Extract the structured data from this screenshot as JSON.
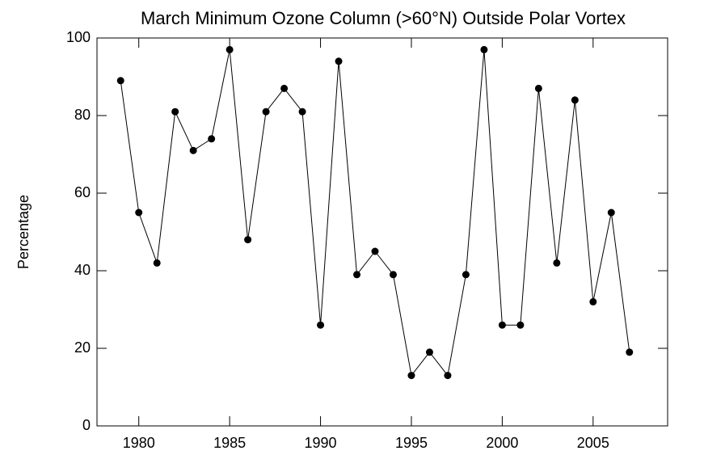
{
  "chart_data": {
    "type": "line",
    "title": "March Minimum Ozone Column (>60°N) Outside Polar Vortex",
    "y_label": "Percentage",
    "x": [
      1979,
      1980,
      1981,
      1982,
      1983,
      1984,
      1985,
      1986,
      1987,
      1988,
      1989,
      1990,
      1991,
      1992,
      1993,
      1994,
      1995,
      1996,
      1997,
      1998,
      1999,
      2000,
      2001,
      2002,
      2003,
      2004,
      2005,
      2006,
      2007
    ],
    "series": [
      {
        "name": "Percentage",
        "color": "#000000",
        "values": [
          89,
          55,
          42,
          81,
          71,
          74,
          97,
          48,
          81,
          87,
          81,
          26,
          94,
          39,
          45,
          39,
          13,
          19,
          13,
          39,
          97,
          26,
          26,
          87,
          42,
          84,
          32,
          55,
          19
        ]
      }
    ],
    "xlim": [
      1977.7,
      2009.1
    ],
    "xticks": [
      1980,
      1985,
      1990,
      1995,
      2000,
      2005
    ],
    "ylim": [
      0,
      100
    ],
    "yticks": [
      0,
      20,
      40,
      60,
      80,
      100
    ]
  }
}
